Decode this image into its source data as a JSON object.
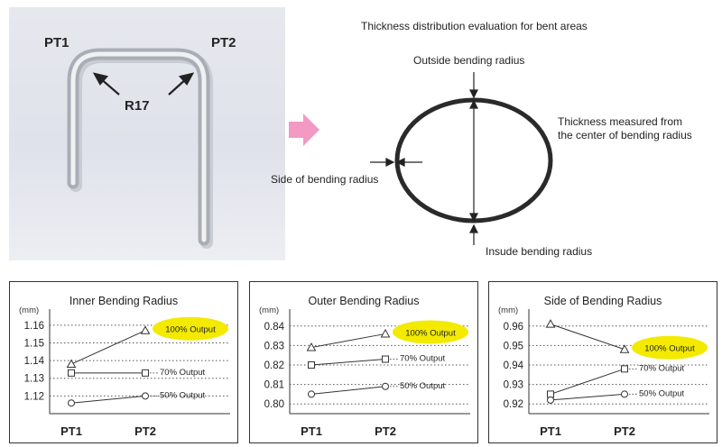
{
  "photo": {
    "label_pt1": "PT1",
    "label_pt2": "PT2",
    "label_radius": "R17"
  },
  "diagram": {
    "title": "Thickness distribution evaluation for bent areas",
    "outside_label": "Outside bending radius",
    "side_label": "Side of bending radius",
    "center_label_1": "Thickness measured from",
    "center_label_2": "the center of bending radius",
    "inside_label": "Insude bending radius"
  },
  "highlight_color": "#f3ea00",
  "chart_data": [
    {
      "type": "line",
      "title": "Inner Bending Radius",
      "ylabel": "(mm)",
      "categories": [
        "PT1",
        "PT2"
      ],
      "ylim": [
        1.11,
        1.165
      ],
      "yticks": [
        "1.16",
        "1.15",
        "1.14",
        "1.13",
        "1.12"
      ],
      "ytick_values": [
        1.16,
        1.15,
        1.14,
        1.13,
        1.12
      ],
      "series": [
        {
          "name": "100% Output",
          "marker": "triangle",
          "values": [
            1.138,
            1.157
          ],
          "highlight": true
        },
        {
          "name": "70% Output",
          "marker": "square",
          "values": [
            1.133,
            1.133
          ]
        },
        {
          "name": "50% Output",
          "marker": "circle",
          "values": [
            1.116,
            1.12
          ]
        }
      ]
    },
    {
      "type": "line",
      "title": "Outer Bending Radius",
      "ylabel": "(mm)",
      "categories": [
        "PT1",
        "PT2"
      ],
      "ylim": [
        0.795,
        0.845
      ],
      "yticks": [
        "0.84",
        "0.83",
        "0.82",
        "0.81",
        "0.80"
      ],
      "ytick_values": [
        0.84,
        0.83,
        0.82,
        0.81,
        0.8
      ],
      "series": [
        {
          "name": "100% Output",
          "marker": "triangle",
          "values": [
            0.829,
            0.836
          ],
          "highlight": true
        },
        {
          "name": "70% Output",
          "marker": "square",
          "values": [
            0.82,
            0.823
          ]
        },
        {
          "name": "50% Output",
          "marker": "circle",
          "values": [
            0.805,
            0.809
          ]
        }
      ]
    },
    {
      "type": "line",
      "title": "Side of Bending Radius",
      "ylabel": "(mm)",
      "categories": [
        "PT1",
        "PT2"
      ],
      "ylim": [
        0.915,
        0.965
      ],
      "yticks": [
        "0.96",
        "0.95",
        "0.94",
        "0.93",
        "0.92"
      ],
      "ytick_values": [
        0.96,
        0.95,
        0.94,
        0.93,
        0.92
      ],
      "series": [
        {
          "name": "100% Output",
          "marker": "triangle",
          "values": [
            0.961,
            0.948
          ],
          "highlight": true
        },
        {
          "name": "70% Output",
          "marker": "square",
          "values": [
            0.925,
            0.938
          ]
        },
        {
          "name": "50% Output",
          "marker": "circle",
          "values": [
            0.922,
            0.925
          ]
        }
      ]
    }
  ]
}
